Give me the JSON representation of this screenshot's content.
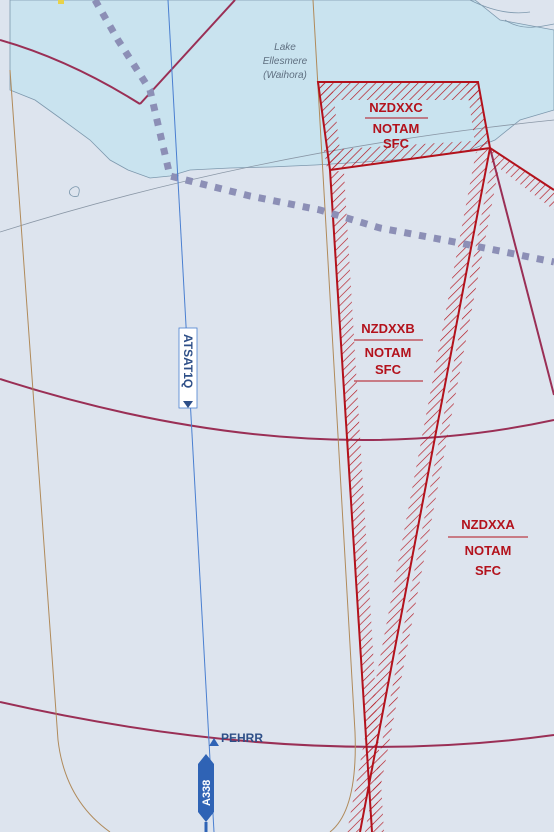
{
  "map": {
    "lake": {
      "name_line1": "Lake",
      "name_line2": "Ellesmere",
      "name_line3": "(Waihora)"
    },
    "restricted_areas": [
      {
        "id": "NZDXXC",
        "type": "NOTAM",
        "lower_limit": "SFC"
      },
      {
        "id": "NZDXXB",
        "type": "NOTAM",
        "lower_limit": "SFC"
      },
      {
        "id": "NZDXXA",
        "type": "NOTAM",
        "lower_limit": "SFC"
      }
    ],
    "route": {
      "name": "ATSAT1Q"
    },
    "waypoint": {
      "name": "PEHRR"
    },
    "aircraft": {
      "type": "A338"
    },
    "colors": {
      "land": "#dde4ee",
      "water": "#c9e3ef",
      "restricted": "#b3121c",
      "boundary": "#9a2f55",
      "route": "#4a7fd0",
      "dotted_track": "#8c8fb6",
      "aircraft": "#2f63b5"
    }
  }
}
